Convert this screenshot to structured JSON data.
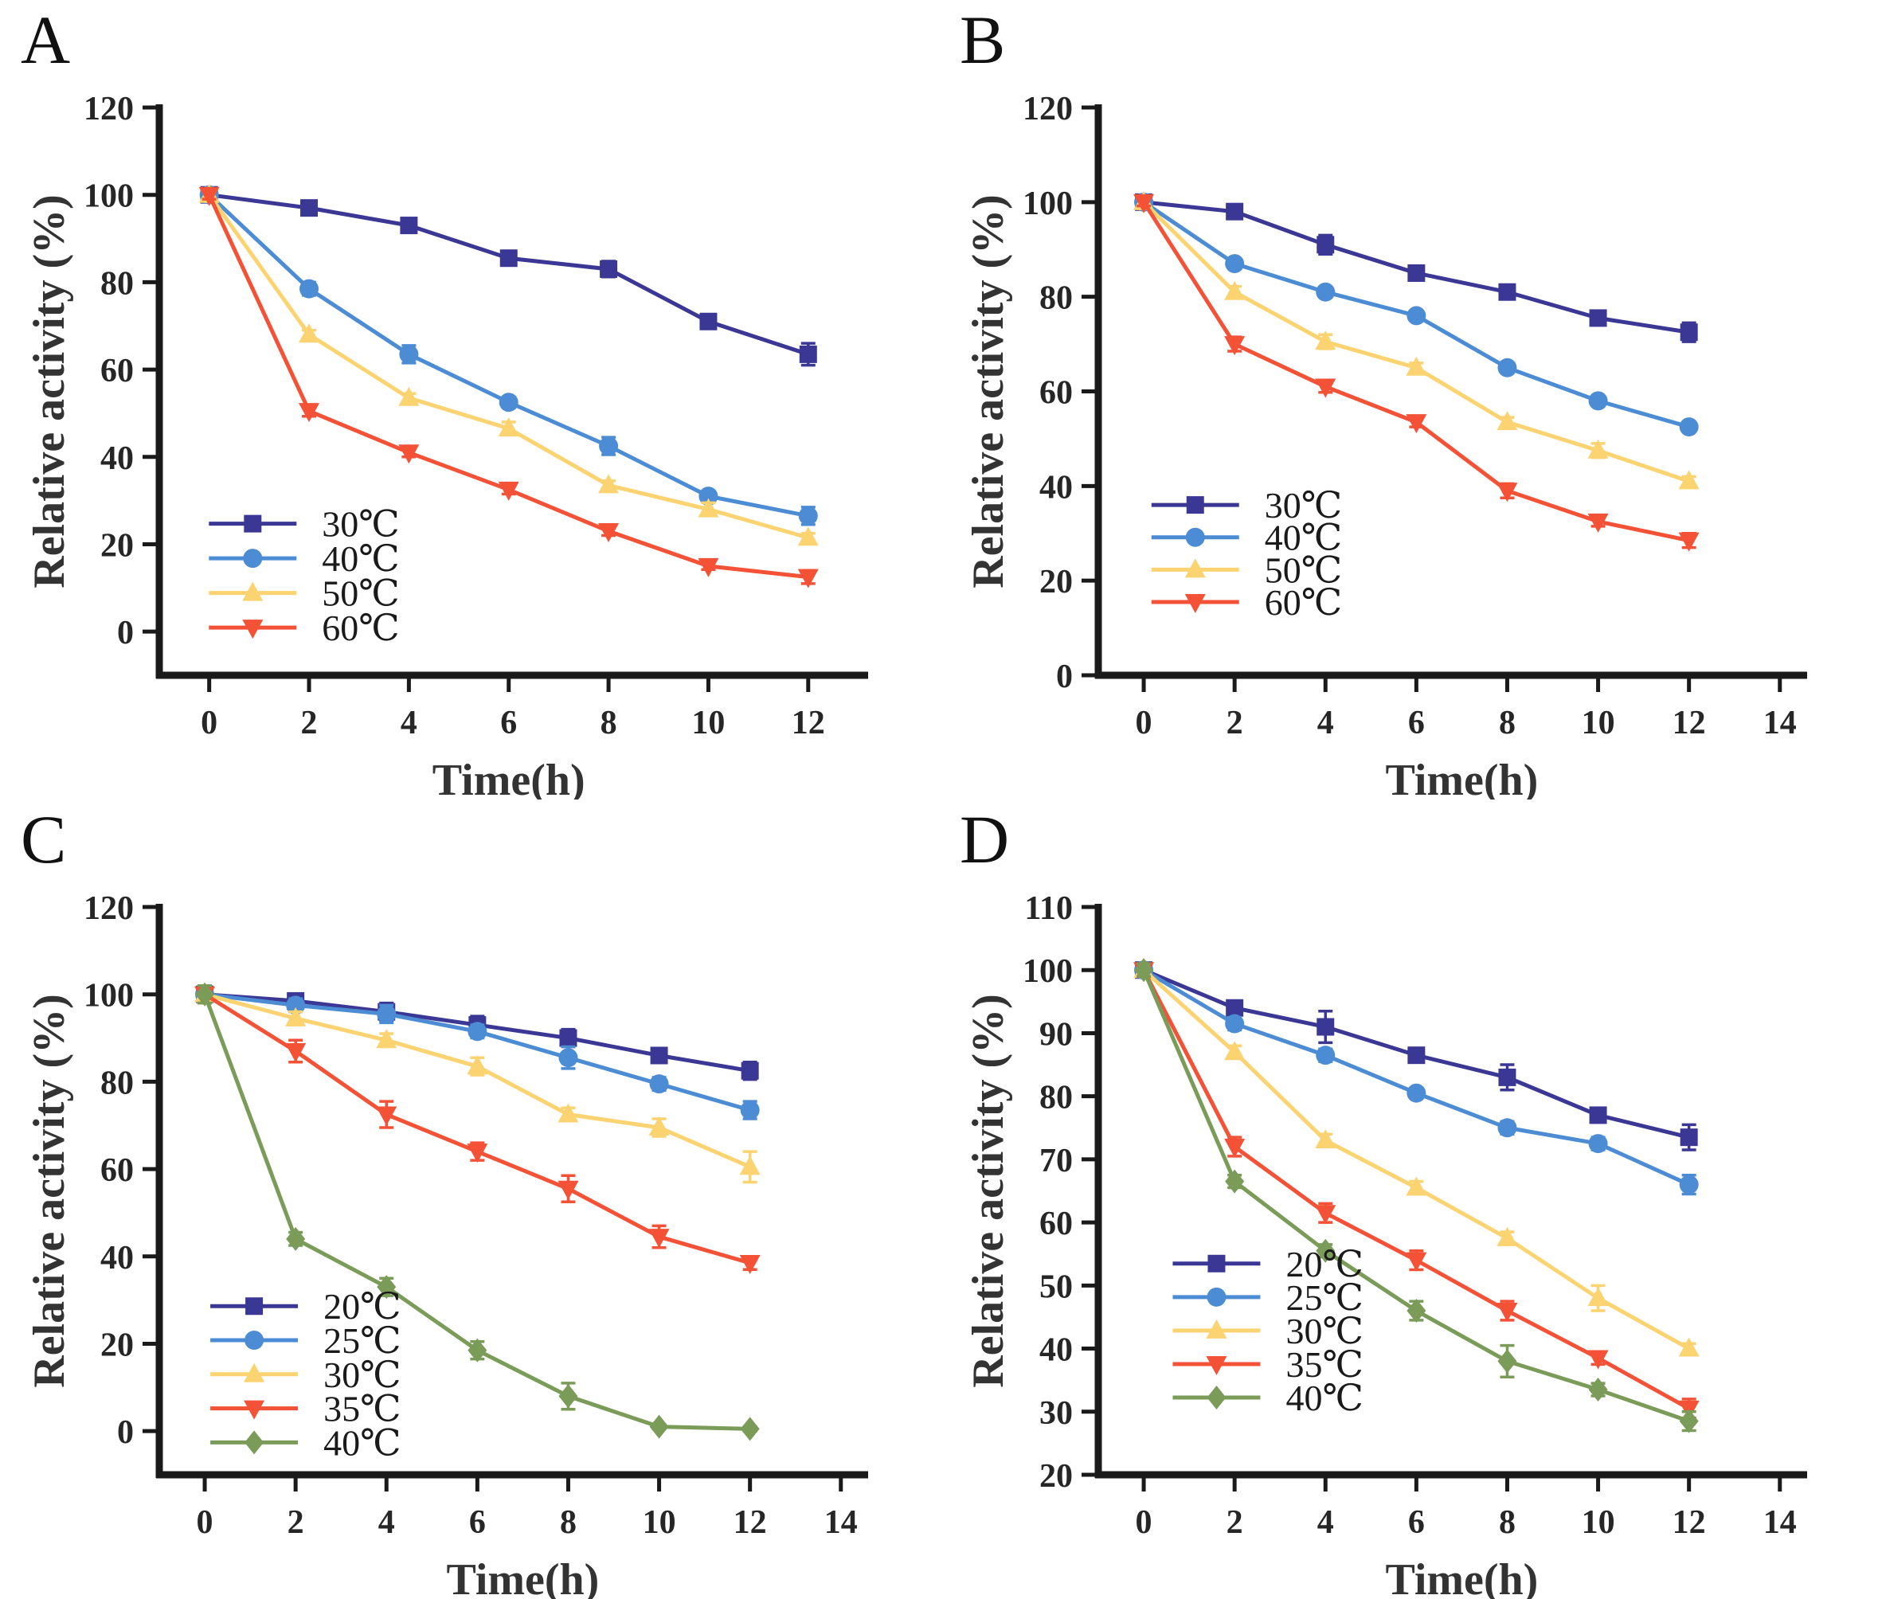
{
  "figure_title": "",
  "style": {
    "axis_color": "#1a1a1a",
    "tick_text_color": "#262626",
    "label_text_color": "#333333",
    "legend_text_color": "#1a1a1a",
    "background": "#ffffff"
  },
  "chart_data": [
    {
      "type": "line",
      "panel": "A",
      "xlabel": "Time(h)",
      "ylabel": "Relative activity (%)",
      "x": [
        0,
        2,
        4,
        6,
        8,
        10,
        12
      ],
      "xticks": [
        0,
        2,
        4,
        6,
        8,
        10,
        12
      ],
      "yticks": [
        0,
        20,
        40,
        60,
        80,
        100,
        120
      ],
      "xlim": [
        -1,
        13.2
      ],
      "ylim": [
        -10,
        120
      ],
      "legend_pos": {
        "fx": 0.07,
        "fy": 0.733,
        "dy": 0.061
      },
      "series": [
        {
          "name": "30℃",
          "color": "#3B3795",
          "marker": "square",
          "values": [
            100,
            97,
            93,
            85.5,
            83,
            71,
            63.5
          ],
          "errors": [
            1,
            0.8,
            1.5,
            1,
            1.8,
            0.8,
            2.5
          ]
        },
        {
          "name": "40℃",
          "color": "#4B8CD4",
          "marker": "circle",
          "values": [
            100,
            78.5,
            63.5,
            52.5,
            42.5,
            31,
            26.5
          ],
          "errors": [
            1,
            1.5,
            2,
            1.2,
            2,
            1.2,
            2
          ]
        },
        {
          "name": "50℃",
          "color": "#FBD371",
          "marker": "triangle-up",
          "values": [
            100,
            68,
            53.5,
            46.5,
            33.5,
            28,
            21.5
          ],
          "errors": [
            1,
            1,
            1,
            1.5,
            1,
            1.5,
            1
          ]
        },
        {
          "name": "60℃",
          "color": "#F35237",
          "marker": "triangle-down",
          "values": [
            100,
            50.5,
            41,
            32.5,
            23,
            15,
            12.5
          ],
          "errors": [
            1,
            1.2,
            1,
            1,
            1,
            0.8,
            1.5
          ]
        }
      ]
    },
    {
      "type": "line",
      "panel": "B",
      "xlabel": "Time(h)",
      "ylabel": "Relative activity (%)",
      "x": [
        0,
        2,
        4,
        6,
        8,
        10,
        12
      ],
      "xticks": [
        0,
        2,
        4,
        6,
        8,
        10,
        12,
        14
      ],
      "yticks": [
        0,
        20,
        40,
        60,
        80,
        100,
        120
      ],
      "xlim": [
        -1,
        14.6
      ],
      "ylim": [
        0,
        120
      ],
      "legend_pos": {
        "fx": 0.075,
        "fy": 0.7,
        "dy": 0.057
      },
      "series": [
        {
          "name": "30℃",
          "color": "#3B3795",
          "marker": "square",
          "values": [
            100,
            98,
            91,
            85,
            81,
            75.5,
            72.5
          ],
          "errors": [
            0.8,
            0.8,
            2,
            0.8,
            1.5,
            0.8,
            2
          ]
        },
        {
          "name": "40℃",
          "color": "#4B8CD4",
          "marker": "circle",
          "values": [
            100,
            87,
            81,
            76,
            65,
            58,
            52.5
          ],
          "errors": [
            0.8,
            1,
            1,
            1,
            1,
            1,
            1
          ]
        },
        {
          "name": "50℃",
          "color": "#FBD371",
          "marker": "triangle-up",
          "values": [
            100,
            81,
            70.5,
            65,
            53.5,
            47.5,
            41
          ],
          "errors": [
            0.8,
            1.2,
            1.5,
            1,
            1,
            1.5,
            1
          ]
        },
        {
          "name": "60℃",
          "color": "#F35237",
          "marker": "triangle-down",
          "values": [
            100,
            70,
            61,
            53.5,
            39,
            32.5,
            28.5
          ],
          "errors": [
            0.8,
            1.5,
            1.2,
            1,
            1.5,
            1,
            1.5
          ]
        }
      ]
    },
    {
      "type": "line",
      "panel": "C",
      "xlabel": "Time(h)",
      "ylabel": "Relative activity (%)",
      "x": [
        0,
        2,
        4,
        6,
        8,
        10,
        12
      ],
      "xticks": [
        0,
        2,
        4,
        6,
        8,
        10,
        12,
        14
      ],
      "yticks": [
        0,
        20,
        40,
        60,
        80,
        100,
        120
      ],
      "xlim": [
        -1,
        14.6
      ],
      "ylim": [
        -10,
        120
      ],
      "legend_pos": {
        "fx": 0.072,
        "fy": 0.703,
        "dy": 0.06
      },
      "series": [
        {
          "name": "20℃",
          "color": "#3B3795",
          "marker": "square",
          "values": [
            100,
            98.5,
            96,
            93,
            90,
            86,
            82.5
          ],
          "errors": [
            2,
            1.5,
            2,
            2,
            2,
            1.5,
            2
          ]
        },
        {
          "name": "25℃",
          "color": "#4B8CD4",
          "marker": "circle",
          "values": [
            100,
            97.5,
            95.5,
            91.5,
            85.5,
            79.5,
            73.5
          ],
          "errors": [
            2,
            1.5,
            2,
            1.5,
            2.5,
            1.5,
            2
          ]
        },
        {
          "name": "30℃",
          "color": "#FBD371",
          "marker": "triangle-up",
          "values": [
            100,
            94.5,
            89.5,
            83.5,
            72.5,
            69.5,
            60.5
          ],
          "errors": [
            2,
            1.5,
            1.5,
            2,
            1.5,
            2,
            3.5
          ]
        },
        {
          "name": "35℃",
          "color": "#F35237",
          "marker": "triangle-down",
          "values": [
            100,
            87,
            72.5,
            64,
            55.5,
            44.5,
            38.5
          ],
          "errors": [
            2,
            2.5,
            3,
            2,
            3,
            2.5,
            1.5
          ]
        },
        {
          "name": "40℃",
          "color": "#7B9C59",
          "marker": "diamond",
          "values": [
            100,
            44,
            33,
            18.5,
            8,
            1,
            0.5
          ],
          "errors": [
            2,
            1.5,
            2,
            2,
            3,
            0.5,
            0.5
          ]
        }
      ]
    },
    {
      "type": "line",
      "panel": "D",
      "xlabel": "Time(h)",
      "ylabel": "Relative activity (%)",
      "x": [
        0,
        2,
        4,
        6,
        8,
        10,
        12
      ],
      "xticks": [
        0,
        2,
        4,
        6,
        8,
        10,
        12,
        14
      ],
      "yticks": [
        20,
        30,
        40,
        50,
        60,
        70,
        80,
        90,
        100,
        110
      ],
      "xlim": [
        -1,
        14.6
      ],
      "ylim": [
        20,
        110
      ],
      "legend_pos": {
        "fx": 0.105,
        "fy": 0.628,
        "dy": 0.059
      },
      "series": [
        {
          "name": "20℃",
          "color": "#3B3795",
          "marker": "square",
          "values": [
            100,
            94,
            91,
            86.5,
            83,
            77,
            73.5
          ],
          "errors": [
            1,
            0.8,
            2.5,
            0.8,
            2,
            1,
            2
          ]
        },
        {
          "name": "25℃",
          "color": "#4B8CD4",
          "marker": "circle",
          "values": [
            100,
            91.5,
            86.5,
            80.5,
            75,
            72.5,
            66
          ],
          "errors": [
            1,
            1,
            1,
            0.8,
            1,
            1,
            1.5
          ]
        },
        {
          "name": "30℃",
          "color": "#FBD371",
          "marker": "triangle-up",
          "values": [
            100,
            87,
            73,
            65.5,
            57.5,
            48,
            40
          ],
          "errors": [
            1,
            1,
            1,
            1,
            1,
            2,
            0.8
          ]
        },
        {
          "name": "35℃",
          "color": "#F35237",
          "marker": "triangle-down",
          "values": [
            100,
            72,
            61.5,
            54,
            46,
            38.5,
            30.5
          ],
          "errors": [
            1,
            1.5,
            1.5,
            1.5,
            1.5,
            1,
            1.5
          ]
        },
        {
          "name": "40℃",
          "color": "#7B9C59",
          "marker": "diamond",
          "values": [
            100,
            66.5,
            55.5,
            46,
            38,
            33.5,
            28.5
          ],
          "errors": [
            1,
            1,
            1,
            1.5,
            2.5,
            1,
            1.5
          ]
        }
      ]
    }
  ]
}
